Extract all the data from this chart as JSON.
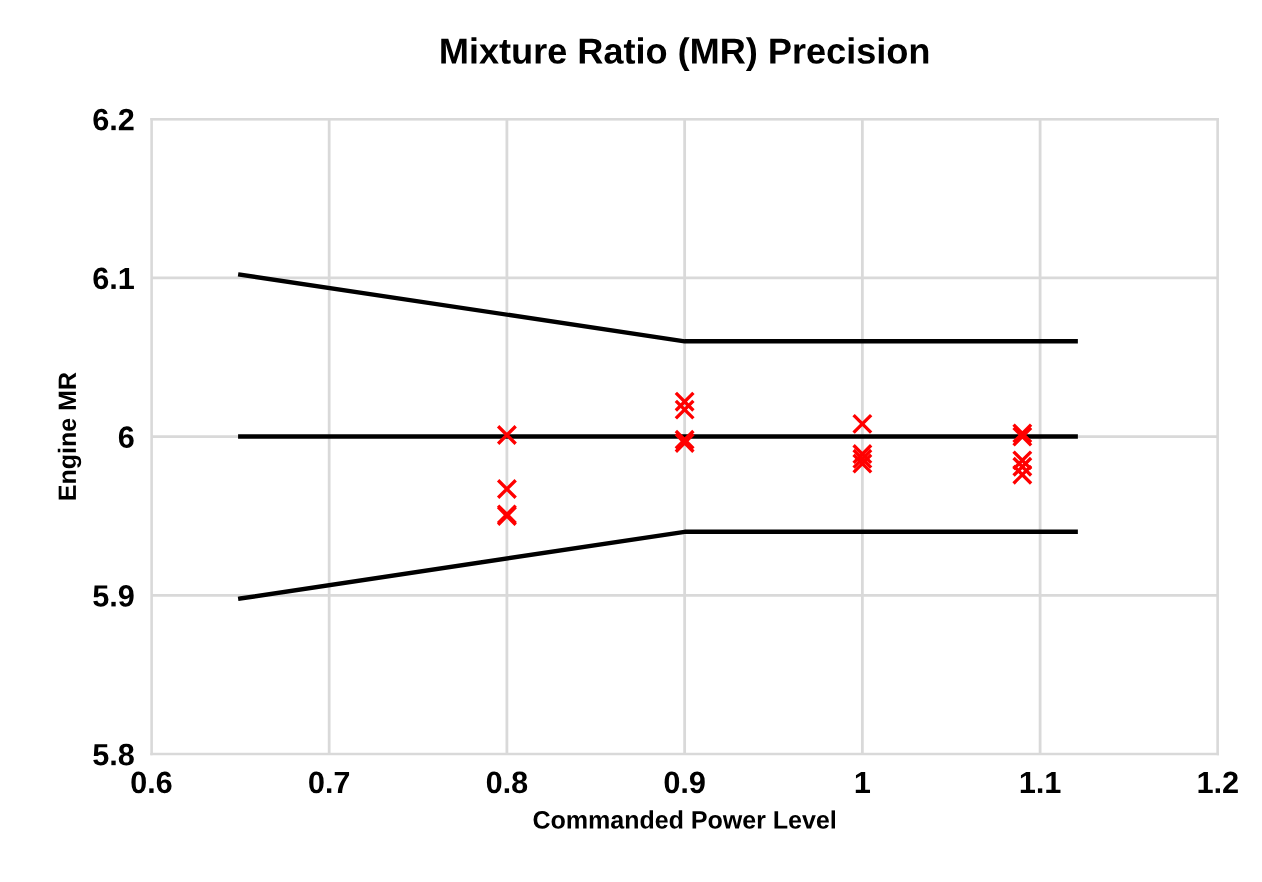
{
  "chart_data": {
    "type": "line",
    "title": "Mixture Ratio (MR) Precision",
    "xlabel": "Commanded Power Level",
    "ylabel": "Engine MR",
    "xlim": [
      0.6,
      1.2
    ],
    "xticks": [
      0.6,
      0.7,
      0.8,
      0.9,
      1,
      1.1,
      1.2
    ],
    "ylim": [
      5.8,
      6.2
    ],
    "yticks": [
      5.8,
      5.9,
      6,
      6.1,
      6.2
    ],
    "grid": true,
    "legend": false,
    "series": [
      {
        "color": "#000000",
        "marker": "none",
        "x": [
          0.65,
          0.9,
          1.12
        ],
        "values": [
          6.102,
          6.06,
          6.06
        ]
      },
      {
        "color": "#000000",
        "marker": "none",
        "x": [
          0.65,
          0.9,
          1.12
        ],
        "values": [
          6.0,
          6.0,
          6.0
        ]
      },
      {
        "color": "#000000",
        "marker": "none",
        "x": [
          0.65,
          0.9,
          1.12
        ],
        "values": [
          5.898,
          5.94,
          5.94
        ]
      },
      {
        "type": "scatter",
        "color": "#ff0000",
        "marker": "cross",
        "x": [
          0.8,
          0.8,
          0.8,
          0.8,
          0.9,
          0.9,
          0.9,
          0.9,
          1.0,
          1.0,
          1.0,
          1.0,
          1.09,
          1.09,
          1.09,
          1.09,
          1.09
        ],
        "values": [
          6.001,
          5.967,
          5.951,
          5.95,
          6.022,
          6.017,
          5.998,
          5.996,
          6.008,
          5.989,
          5.986,
          5.983,
          6.002,
          6.0,
          5.985,
          5.981,
          5.976
        ]
      }
    ]
  }
}
